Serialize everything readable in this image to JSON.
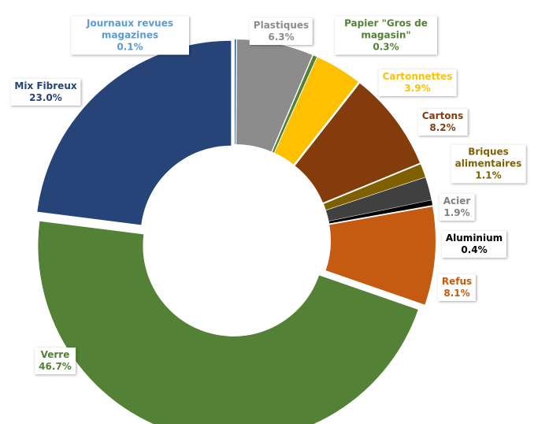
{
  "chart_data": {
    "type": "pie",
    "categories": [
      "Journaux revues magazines",
      "Plastiques",
      "Papier \"Gros de magasin\"",
      "Cartonnettes",
      "Cartons",
      "Briques alimentaires",
      "Acier",
      "Aluminium",
      "Refus",
      "Verre",
      "Mix Fibreux"
    ],
    "values": [
      0.1,
      6.3,
      0.3,
      3.9,
      8.2,
      1.1,
      1.9,
      0.4,
      8.1,
      46.7,
      23.0
    ],
    "value_labels": [
      "0.1%",
      "6.3%",
      "0.3%",
      "3.9%",
      "8.2%",
      "1.1%",
      "1.9%",
      "0.4%",
      "8.1%",
      "46.7%",
      "23.0%"
    ],
    "colors": [
      "#2f5597",
      "#8c8c8c",
      "#548235",
      "#ffc000",
      "#843c0c",
      "#7f6000",
      "#404040",
      "#000000",
      "#c55a11",
      "#538135",
      "#264478"
    ],
    "label_colors": [
      "#5b9bd5",
      "#8c8c8c",
      "#548235",
      "#ffc000",
      "#843c0c",
      "#7f6000",
      "#7f7f7f",
      "#000000",
      "#c55a11",
      "#538135",
      "#264478"
    ]
  }
}
